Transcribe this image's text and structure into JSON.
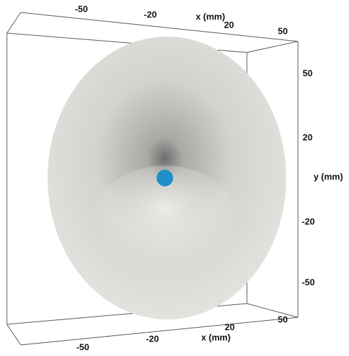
{
  "axes": {
    "x_top": {
      "label": "x (mm)",
      "ticks": [
        -50,
        -20,
        20,
        50
      ]
    },
    "x_bottom": {
      "label": "x (mm)",
      "ticks": [
        -50,
        -20,
        20,
        50
      ]
    },
    "y": {
      "label": "y (mm)",
      "ticks": [
        50,
        20,
        -20,
        -50
      ]
    }
  }
}
